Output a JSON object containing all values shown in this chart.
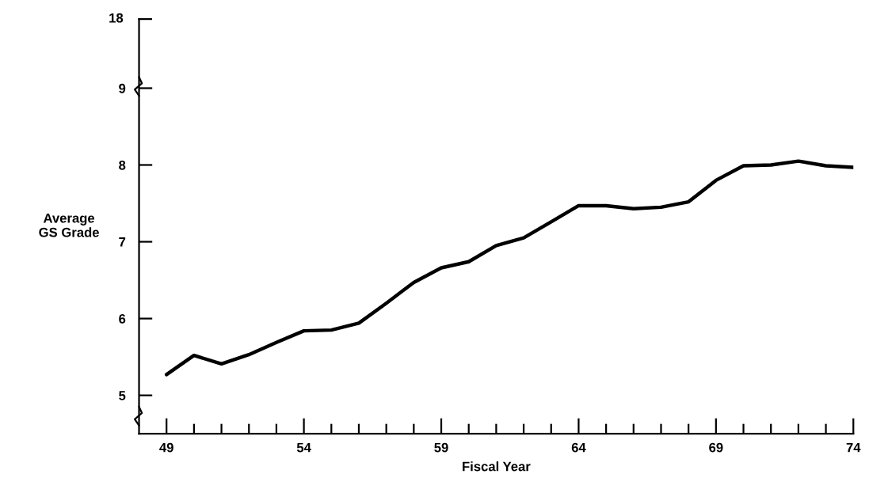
{
  "chart_data": {
    "type": "line",
    "xlabel": "Fiscal Year",
    "ylabel": "Average\nGS Grade",
    "x": [
      49,
      50,
      51,
      52,
      53,
      54,
      55,
      56,
      57,
      58,
      59,
      60,
      61,
      62,
      63,
      64,
      65,
      66,
      67,
      68,
      69,
      70,
      71,
      72,
      73,
      74
    ],
    "series": [
      {
        "color": "#000000",
        "values": [
          5.27,
          5.52,
          5.41,
          5.53,
          5.69,
          5.84,
          5.85,
          5.94,
          6.2,
          6.47,
          6.66,
          6.74,
          6.95,
          7.05,
          7.26,
          7.47,
          7.47,
          7.43,
          7.45,
          7.52,
          7.8,
          7.99,
          8.0,
          8.05,
          7.99,
          7.97
        ]
      }
    ],
    "xlim": [
      48,
      74
    ],
    "xticks": [
      49,
      {
        "value": 50,
        "label": null
      },
      {
        "value": 51,
        "label": null
      },
      {
        "value": 52,
        "label": null
      },
      {
        "value": 53,
        "label": null
      },
      54,
      {
        "value": 55,
        "label": null
      },
      {
        "value": 56,
        "label": null
      },
      {
        "value": 57,
        "label": null
      },
      {
        "value": 58,
        "label": null
      },
      59,
      {
        "value": 60,
        "label": null
      },
      {
        "value": 61,
        "label": null
      },
      {
        "value": 62,
        "label": null
      },
      {
        "value": 63,
        "label": null
      },
      64,
      {
        "value": 65,
        "label": null
      },
      {
        "value": 66,
        "label": null
      },
      {
        "value": 67,
        "label": null
      },
      {
        "value": 68,
        "label": null
      },
      69,
      {
        "value": 70,
        "label": null
      },
      {
        "value": 71,
        "label": null
      },
      {
        "value": 72,
        "label": null
      },
      {
        "value": 73,
        "label": null
      },
      74
    ],
    "ylim": [
      4.5,
      9.9
    ],
    "yticks": [
      5,
      6,
      7,
      8,
      9
    ],
    "annotations": [
      "18"
    ]
  }
}
